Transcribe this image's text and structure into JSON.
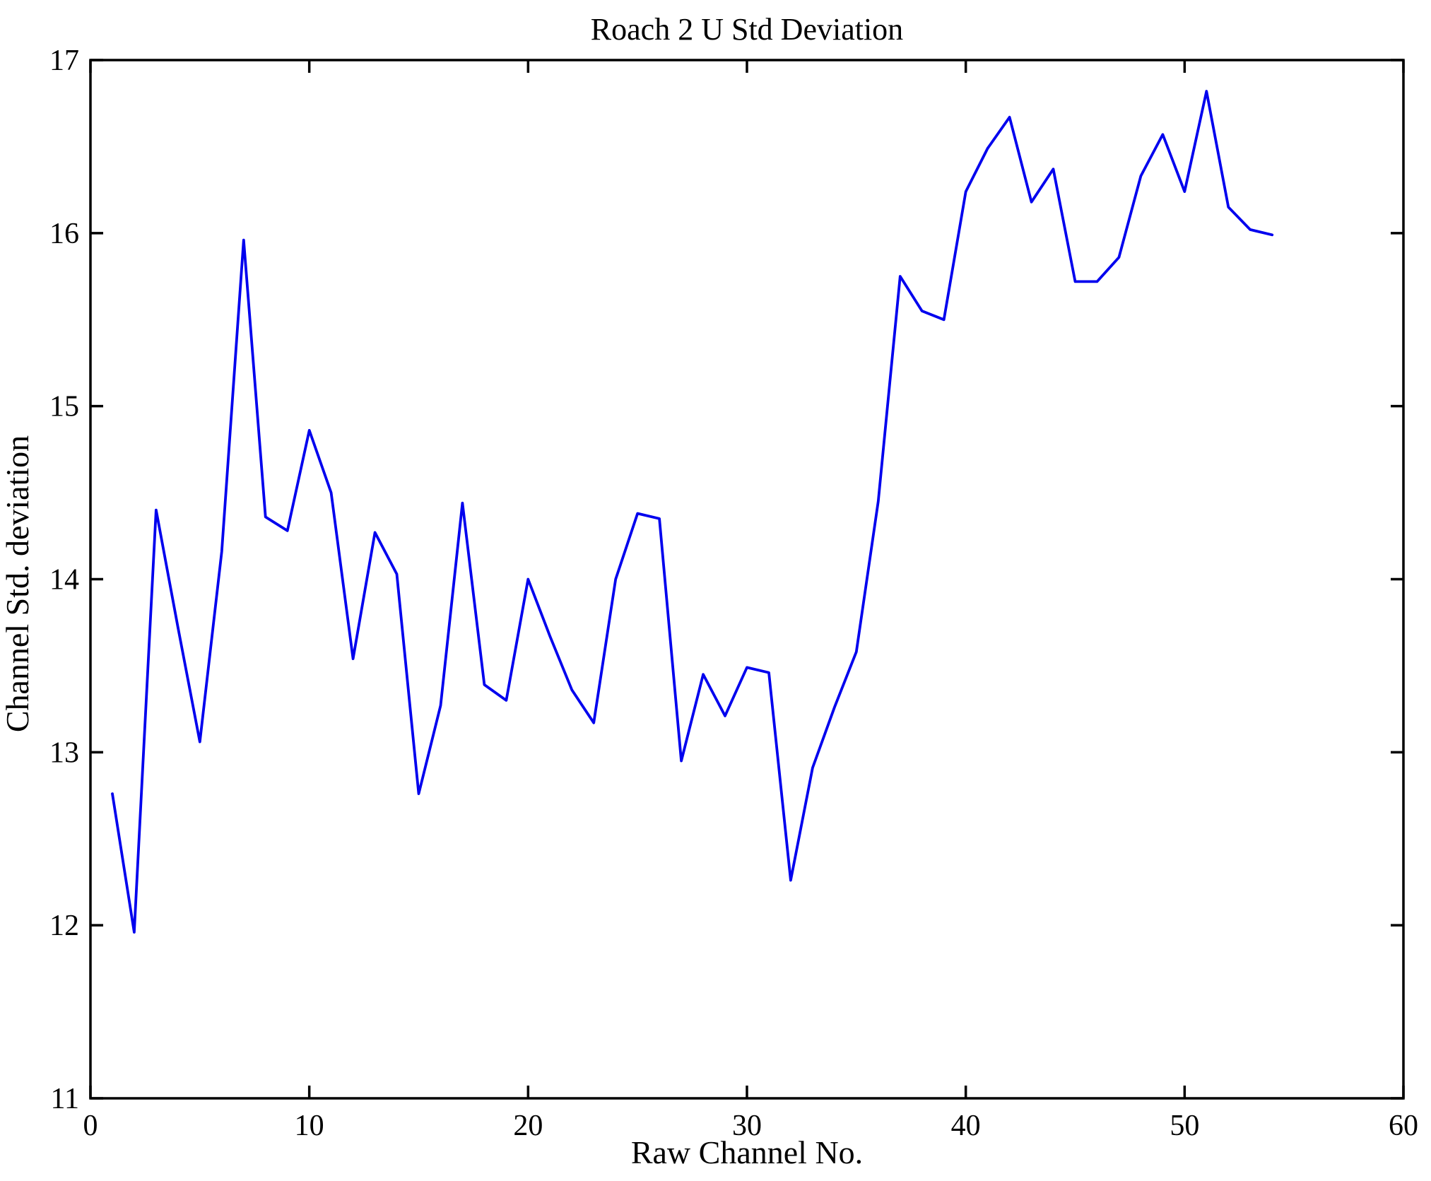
{
  "figure": {
    "background": "#ffffff",
    "axis_color": "#000000"
  },
  "chart_data": {
    "type": "line",
    "title": "Roach 2 U Std Deviation",
    "xlabel": "Raw Channel No.",
    "ylabel": "Channel Std. deviation",
    "xlim": [
      0,
      60
    ],
    "ylim": [
      11,
      17
    ],
    "xticks": [
      0,
      10,
      20,
      30,
      40,
      50,
      60
    ],
    "yticks": [
      11,
      12,
      13,
      14,
      15,
      16,
      17
    ],
    "grid": false,
    "legend": "none",
    "line_color": "#0000EE",
    "x": [
      1,
      2,
      3,
      4,
      5,
      6,
      7,
      8,
      9,
      10,
      11,
      12,
      13,
      14,
      15,
      16,
      17,
      18,
      19,
      20,
      21,
      22,
      23,
      24,
      25,
      26,
      27,
      28,
      29,
      30,
      31,
      32,
      33,
      34,
      35,
      36,
      37,
      38,
      39,
      40,
      41,
      42,
      43,
      44,
      45,
      46,
      47,
      48,
      49,
      50,
      51,
      52,
      53,
      54
    ],
    "values": [
      12.76,
      11.96,
      14.4,
      13.72,
      13.06,
      14.16,
      15.96,
      14.36,
      14.28,
      14.86,
      14.5,
      13.54,
      14.27,
      14.03,
      12.76,
      13.27,
      14.44,
      13.39,
      13.3,
      14.0,
      13.67,
      13.36,
      13.17,
      14.0,
      14.38,
      14.35,
      12.95,
      13.45,
      13.21,
      13.49,
      13.46,
      12.26,
      12.91,
      13.26,
      13.58,
      14.45,
      15.75,
      15.55,
      15.5,
      16.24,
      16.49,
      16.67,
      16.18,
      16.37,
      15.72,
      15.72,
      15.86,
      16.33,
      16.57,
      16.24,
      16.82,
      16.15,
      16.02,
      15.99
    ]
  }
}
